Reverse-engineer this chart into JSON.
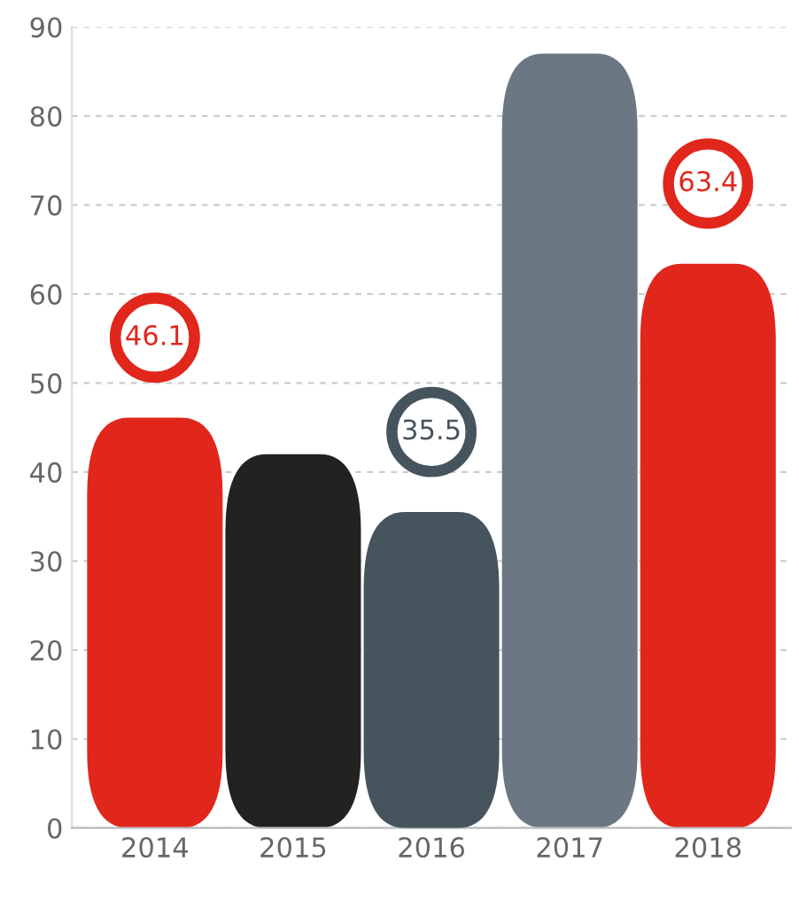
{
  "chart_data": {
    "type": "bar",
    "categories": [
      "2014",
      "2015",
      "2016",
      "2017",
      "2018"
    ],
    "values": [
      46.1,
      42,
      35.5,
      87,
      63.4
    ],
    "colors": [
      "#e1261c",
      "#222221",
      "#46545e",
      "#6b7884",
      "#e1261c"
    ],
    "value_labels": [
      "46.1",
      null,
      "35.5",
      null,
      "63.4"
    ],
    "ylim": [
      0,
      90
    ],
    "yticks": [
      0,
      10,
      20,
      30,
      40,
      50,
      60,
      70,
      80,
      90
    ],
    "grid": "y"
  }
}
